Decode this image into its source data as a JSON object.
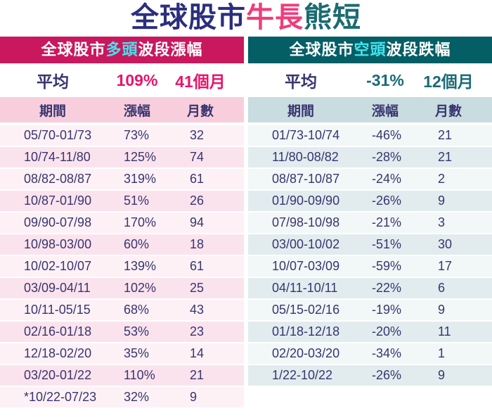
{
  "title": {
    "market": "全球股市",
    "bull": "牛長",
    "bear": "熊短"
  },
  "chart_data": [
    {
      "id": "bull",
      "type": "table",
      "header": {
        "prefix": "全球股市",
        "highlight": "多頭",
        "suffix": "波段漲幅"
      },
      "average": {
        "label": "平均",
        "change": "109%",
        "duration": "41個月"
      },
      "columns": [
        "期間",
        "漲幅",
        "月數"
      ],
      "rows": [
        [
          "05/70-01/73",
          "73%",
          "32"
        ],
        [
          "10/74-11/80",
          "125%",
          "74"
        ],
        [
          "08/82-08/87",
          "319%",
          "61"
        ],
        [
          "10/87-01/90",
          "51%",
          "26"
        ],
        [
          "09/90-07/98",
          "170%",
          "94"
        ],
        [
          "10/98-03/00",
          "60%",
          "18"
        ],
        [
          "10/02-10/07",
          "139%",
          "61"
        ],
        [
          "03/09-04/11",
          "102%",
          "25"
        ],
        [
          "10/11-05/15",
          "68%",
          "43"
        ],
        [
          "02/16-01/18",
          "53%",
          "23"
        ],
        [
          "12/18-02/20",
          "35%",
          "14"
        ],
        [
          "03/20-01/22",
          "110%",
          "21"
        ],
        [
          "*10/22-07/23",
          "32%",
          "9"
        ]
      ]
    },
    {
      "id": "bear",
      "type": "table",
      "header": {
        "prefix": "全球股市",
        "highlight": "空頭",
        "suffix": "波段跌幅"
      },
      "average": {
        "label": "平均",
        "change": "-31%",
        "duration": "12個月"
      },
      "columns": [
        "期間",
        "漲幅",
        "月數"
      ],
      "rows": [
        [
          "01/73-10/74",
          "-46%",
          "21"
        ],
        [
          "11/80-08/82",
          "-28%",
          "21"
        ],
        [
          "08/87-10/87",
          "-24%",
          "2"
        ],
        [
          "01/90-09/90",
          "-26%",
          "9"
        ],
        [
          "07/98-10/98",
          "-21%",
          "3"
        ],
        [
          "03/00-10/02",
          "-51%",
          "30"
        ],
        [
          "10/07-03/09",
          "-59%",
          "17"
        ],
        [
          "04/11-10/11",
          "-22%",
          "6"
        ],
        [
          "05/15-02/16",
          "-19%",
          "9"
        ],
        [
          "01/18-12/18",
          "-20%",
          "11"
        ],
        [
          "02/20-03/20",
          "-34%",
          "1"
        ],
        [
          "1/22-10/22",
          "-26%",
          "9"
        ]
      ]
    }
  ],
  "colors": {
    "navy": "#38356f",
    "pink_accent": "#e8146a",
    "teal_accent": "#1a6a77",
    "bull_bar_bg": "#c9185e",
    "bear_bar_bg": "#045e66",
    "highlight_cyan": "#44e5ee",
    "bull_header_bg": "#f8cedd",
    "bear_header_bg": "#c9dce0",
    "bull_row_odd": "#fdf1f6",
    "bull_row_even": "#fbe3ed",
    "bear_row_odd": "#f2f7f7",
    "bear_row_even": "#e2ecef",
    "title_navy": "#2b2e7e",
    "title_pink": "#ee3d7b",
    "title_teal": "#1b6b72"
  }
}
